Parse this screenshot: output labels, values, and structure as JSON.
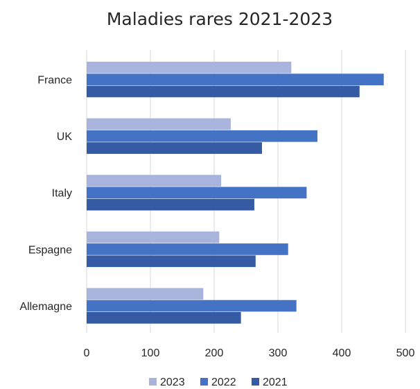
{
  "chart_data": {
    "type": "bar",
    "orientation": "horizontal",
    "title": "Maladies rares 2021-2023",
    "categories": [
      "France",
      "UK",
      "Italy",
      "Espagne",
      "Allemagne"
    ],
    "series": [
      {
        "name": "2023",
        "color": "#a9b4dc",
        "values": [
          321,
          226,
          211,
          208,
          183
        ]
      },
      {
        "name": "2022",
        "color": "#4472c4",
        "values": [
          466,
          362,
          345,
          316,
          329
        ]
      },
      {
        "name": "2021",
        "color": "#345ba3",
        "values": [
          428,
          275,
          263,
          265,
          242
        ]
      }
    ],
    "xlim": [
      0,
      500
    ],
    "xticks": [
      0,
      100,
      200,
      300,
      400,
      500
    ],
    "xlabel": "",
    "ylabel": "",
    "grid": true,
    "legend_position": "bottom"
  }
}
